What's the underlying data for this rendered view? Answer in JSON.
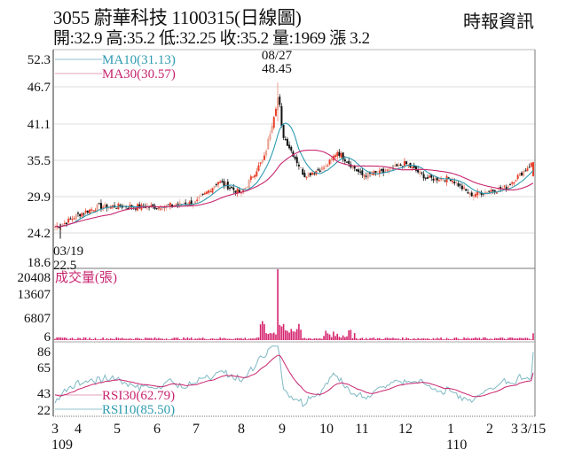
{
  "header": {
    "title": "3055  蔚華科技 1100315(日線圖)",
    "quote": "開:32.9 高:35.2 低:32.25 收:35.2 量:1969 漲 3.2",
    "source": "時報資訊"
  },
  "colors": {
    "up": "#e8402a",
    "up_light": "#e8a090",
    "down": "#111111",
    "ma10": "#2e9bb0",
    "ma30": "#c8246e",
    "volume": "#d6246e",
    "rsi30": "#c8246e",
    "rsi10": "#7fb9c4",
    "grid": "#dcdcdc",
    "frame": "#777777"
  },
  "chart_data": [
    {
      "type": "candlestick",
      "title": "3055 蔚華科技 1100315(日線圖)",
      "panel": "price",
      "y_ticks": [
        52.3,
        46.7,
        41.1,
        35.5,
        29.9,
        24.2,
        18.6
      ],
      "ylim": [
        18.6,
        52.3
      ],
      "x_tick_labels": [
        "3",
        "4",
        "5",
        "6",
        "7",
        "8",
        "9",
        "10",
        "11",
        "12",
        "1",
        "2",
        "3",
        "3/15"
      ],
      "x_year_labels": [
        {
          "label": "109",
          "at": "3"
        },
        {
          "label": "110",
          "at": "1"
        }
      ],
      "legend": [
        {
          "name": "MA10",
          "value": "31.13",
          "label": "MA10(31.13)"
        },
        {
          "name": "MA30",
          "value": "30.57",
          "label": "MA30(30.57)"
        }
      ],
      "annotations": [
        {
          "date": "08/27",
          "value": "48.45",
          "type": "high"
        },
        {
          "date": "03/19",
          "value": "22.5",
          "type": "low"
        }
      ],
      "last_bar": {
        "open": 32.9,
        "high": 35.2,
        "low": 32.25,
        "close": 35.2,
        "volume": 1969,
        "change": 3.2
      },
      "close_approx": [
        {
          "m": "3",
          "v": 24.5
        },
        {
          "m": "3.3",
          "v": 25.0
        },
        {
          "m": "4",
          "v": 26.5
        },
        {
          "m": "4.5",
          "v": 27.8
        },
        {
          "m": "5",
          "v": 27.9
        },
        {
          "m": "6",
          "v": 27.8
        },
        {
          "m": "7",
          "v": 28.5
        },
        {
          "m": "7.5",
          "v": 32.0
        },
        {
          "m": "8",
          "v": 30.0
        },
        {
          "m": "8.5",
          "v": 36.0
        },
        {
          "m": "8.9",
          "v": 46.5
        },
        {
          "m": "9",
          "v": 40.0
        },
        {
          "m": "9.5",
          "v": 33.0
        },
        {
          "m": "10",
          "v": 34.5
        },
        {
          "m": "10.3",
          "v": 37.0
        },
        {
          "m": "11",
          "v": 33.0
        },
        {
          "m": "11.5",
          "v": 33.5
        },
        {
          "m": "12",
          "v": 35.0
        },
        {
          "m": "12.5",
          "v": 32.5
        },
        {
          "m": "1",
          "v": 32.5
        },
        {
          "m": "1.5",
          "v": 29.8
        },
        {
          "m": "2",
          "v": 30.5
        },
        {
          "m": "2.5",
          "v": 31.0
        },
        {
          "m": "3/15",
          "v": 35.2
        }
      ]
    },
    {
      "type": "bar",
      "panel": "volume",
      "title": "成交量(張)",
      "y_ticks": [
        20408,
        13607,
        6807,
        6
      ],
      "ylim": [
        6,
        20408
      ],
      "peak": {
        "date": "08/27",
        "value": 20408
      }
    },
    {
      "type": "line",
      "panel": "rsi",
      "y_ticks": [
        86,
        65,
        43,
        22
      ],
      "ylim": [
        22,
        86
      ],
      "series": [
        {
          "name": "RSI30",
          "value": "62.79",
          "label": "RSI30(62.79)"
        },
        {
          "name": "RSI10",
          "value": "85.50",
          "label": "RSI10(85.50)"
        }
      ]
    }
  ],
  "price_axis": [
    "52.3",
    "46.7",
    "41.1",
    "35.5",
    "29.9",
    "24.2",
    "18.6"
  ],
  "volume_axis": [
    "20408",
    "13607",
    "6807",
    "6"
  ],
  "rsi_axis": [
    "86",
    "65",
    "43",
    "22"
  ],
  "x_axis": {
    "months": [
      "3",
      "4",
      "5",
      "6",
      "7",
      "8",
      "9",
      "10",
      "11",
      "12",
      "1",
      "2",
      "3",
      "3/15"
    ],
    "year_start": "109",
    "year_next": "110"
  },
  "legend": {
    "ma10": "MA10(31.13)",
    "ma30": "MA30(30.57)",
    "volume": "成交量(張)",
    "rsi30": "RSI30(62.79)",
    "rsi10": "RSI10(85.50)"
  },
  "annotations": {
    "high_date": "08/27",
    "high_value": "48.45",
    "low_date": "03/19",
    "low_value": "22.5"
  }
}
